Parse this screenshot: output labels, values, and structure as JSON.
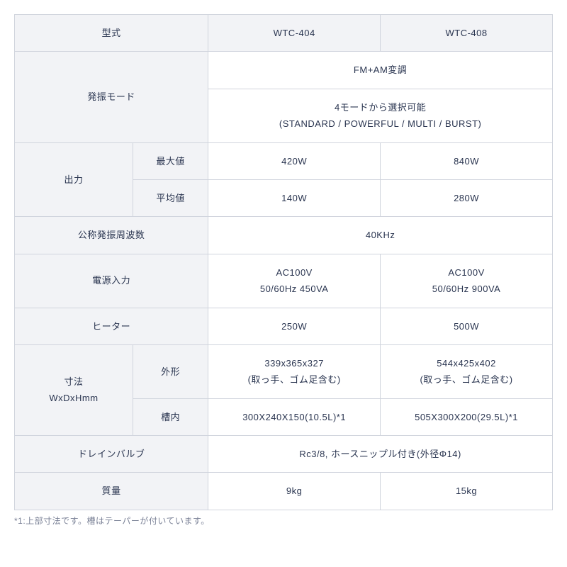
{
  "table": {
    "headers": {
      "model": "型式",
      "wtc404": "WTC-404",
      "wtc408": "WTC-408"
    },
    "oscillation": {
      "label": "発振モード",
      "line1": "FM+AM変調",
      "line2a": "4モードから選択可能",
      "line2b": "(STANDARD / POWERFUL / MULTI / BURST)"
    },
    "output": {
      "label": "出力",
      "max_label": "最大値",
      "max_404": "420W",
      "max_408": "840W",
      "avg_label": "平均値",
      "avg_404": "140W",
      "avg_408": "280W"
    },
    "freq": {
      "label": "公称発振周波数",
      "value": "40KHz"
    },
    "power": {
      "label": "電源入力",
      "v404_a": "AC100V",
      "v404_b": "50/60Hz 450VA",
      "v408_a": "AC100V",
      "v408_b": "50/60Hz 900VA"
    },
    "heater": {
      "label": "ヒーター",
      "v404": "250W",
      "v408": "500W"
    },
    "dims": {
      "label_a": "寸法",
      "label_b": "WxDxHmm",
      "outer_label": "外形",
      "outer_404_a": "339x365x327",
      "outer_404_b": "(取っ手、ゴム足含む)",
      "outer_408_a": "544x425x402",
      "outer_408_b": "(取っ手、ゴム足含む)",
      "inner_label": "槽内",
      "inner_404": "300X240X150(10.5L)*1",
      "inner_408": "505X300X200(29.5L)*1"
    },
    "drain": {
      "label": "ドレインバルブ",
      "value": "Rc3/8, ホースニップル付き(外径Φ14)"
    },
    "weight": {
      "label": "質量",
      "v404": "9kg",
      "v408": "15kg"
    }
  },
  "footnote": "*1:上部寸法です。槽はテーパーが付いています。"
}
